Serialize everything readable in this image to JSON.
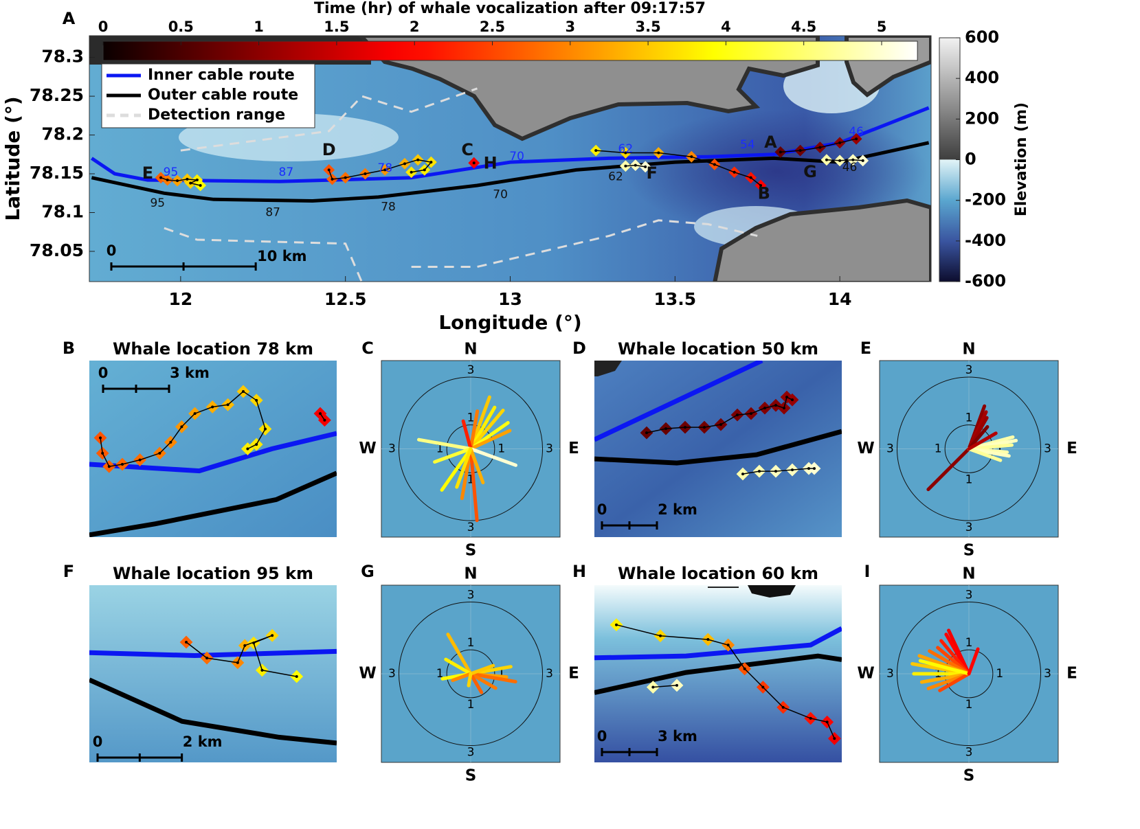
{
  "chart_data": [
    {
      "type": "map",
      "panel": "A",
      "xlabel": "Longitude (°)",
      "ylabel": "Latitude (°)",
      "xlim": [
        11.723,
        14.277
      ],
      "xticks": [
        12,
        12.5,
        13,
        13.5,
        14
      ],
      "ylim": [
        78.011,
        78.328
      ],
      "yticks": [
        78.05,
        78.1,
        78.15,
        78.2,
        78.25,
        78.3
      ],
      "colorbar": {
        "label": "Time (hr) of whale vocalization after 09:17:57",
        "colormap": "hot",
        "lim": [
          0,
          5.23
        ],
        "ticks": [
          0,
          0.5,
          1,
          1.5,
          2,
          2.5,
          3,
          3.5,
          4,
          4.5,
          5
        ]
      },
      "elevation_colorbar": {
        "label": "Elevation (m)",
        "lim": [
          -600,
          600
        ],
        "ticks": [
          -600,
          -400,
          -200,
          0,
          200,
          400,
          600
        ]
      },
      "legend": "upper left",
      "lines": [
        {
          "name": "Inner cable route",
          "color": "#0b17f2",
          "style": "solid",
          "x": [
            11.73,
            11.8,
            11.9,
            12.3,
            12.7,
            13.0,
            13.3,
            13.6,
            13.8,
            14.0,
            14.27
          ],
          "y": [
            78.17,
            78.15,
            78.142,
            78.14,
            78.145,
            78.165,
            78.17,
            78.172,
            78.175,
            78.19,
            78.235
          ]
        },
        {
          "name": "Outer cable route",
          "color": "#000000",
          "style": "solid",
          "x": [
            11.73,
            11.95,
            12.1,
            12.4,
            12.6,
            12.9,
            13.2,
            13.5,
            13.8,
            14.0,
            14.27
          ],
          "y": [
            78.145,
            78.125,
            78.117,
            78.115,
            78.12,
            78.135,
            78.155,
            78.165,
            78.17,
            78.165,
            78.19
          ]
        },
        {
          "name": "Detection range",
          "color": "#dddddd",
          "style": "dashed",
          "x": [
            12.0,
            12.45,
            12.55,
            12.7,
            12.9,
            null,
            11.95,
            12.05,
            12.5,
            12.55,
            null,
            12.7,
            12.9,
            13.3,
            13.45,
            13.6,
            13.75
          ],
          "y": [
            78.18,
            78.205,
            78.25,
            78.23,
            78.26,
            null,
            78.08,
            78.065,
            78.06,
            78.01,
            null,
            78.03,
            78.03,
            78.07,
            78.09,
            78.085,
            78.07
          ]
        }
      ],
      "tracks": [
        {
          "x": [
            11.94,
            11.96,
            11.99,
            12.02,
            12.05,
            12.03,
            12.06
          ],
          "y": [
            78.145,
            78.142,
            78.141,
            78.143,
            78.142,
            78.138,
            78.135
          ],
          "time": [
            2.7,
            2.9,
            3.2,
            3.5,
            3.8,
            3.6,
            3.9
          ]
        },
        {
          "x": [
            12.45,
            12.46,
            12.5,
            12.56,
            12.62,
            12.68,
            12.72,
            12.76,
            12.74,
            12.7
          ],
          "y": [
            78.155,
            78.143,
            78.145,
            78.15,
            78.155,
            78.163,
            78.168,
            78.165,
            78.155,
            78.152
          ],
          "time": [
            2.6,
            2.7,
            2.8,
            2.9,
            3.1,
            3.3,
            3.5,
            3.7,
            3.8,
            3.75
          ]
        },
        {
          "x": [
            12.89
          ],
          "y": [
            78.164
          ],
          "time": [
            1.8
          ]
        },
        {
          "x": [
            13.35,
            13.38,
            13.41
          ],
          "y": [
            78.16,
            78.161,
            78.159
          ],
          "time": [
            4.8,
            4.9,
            5.0
          ]
        },
        {
          "x": [
            13.26,
            13.35,
            13.45,
            13.55,
            13.62,
            13.68,
            13.73,
            13.76
          ],
          "y": [
            78.18,
            78.177,
            78.177,
            78.172,
            78.162,
            78.152,
            78.145,
            78.135
          ],
          "time": [
            3.8,
            3.6,
            3.3,
            3.0,
            2.6,
            2.3,
            2.1,
            1.9
          ]
        },
        {
          "x": [
            13.82,
            13.88,
            13.94,
            14.0,
            14.05
          ],
          "y": [
            78.178,
            78.18,
            78.184,
            78.19,
            78.195
          ],
          "time": [
            0.7,
            0.8,
            0.9,
            1.0,
            1.1
          ]
        },
        {
          "x": [
            13.96,
            14.0,
            14.04,
            14.07
          ],
          "y": [
            78.168,
            78.167,
            78.168,
            78.167
          ],
          "time": [
            4.8,
            4.85,
            4.9,
            5.0
          ]
        }
      ],
      "annotations": [
        {
          "text": "A",
          "x": 13.79,
          "y": 78.19,
          "color": "#111111"
        },
        {
          "text": "B",
          "x": 13.77,
          "y": 78.124,
          "color": "#111111"
        },
        {
          "text": "C",
          "x": 12.87,
          "y": 78.18,
          "color": "#111111"
        },
        {
          "text": "D",
          "x": 12.45,
          "y": 78.18,
          "color": "#111111"
        },
        {
          "text": "E",
          "x": 11.9,
          "y": 78.15,
          "color": "#111111"
        },
        {
          "text": "F",
          "x": 13.43,
          "y": 78.15,
          "color": "#111111"
        },
        {
          "text": "G",
          "x": 13.91,
          "y": 78.152,
          "color": "#111111"
        },
        {
          "text": "H",
          "x": 12.94,
          "y": 78.163,
          "color": "#111111"
        },
        {
          "text": "95",
          "x": 11.97,
          "y": 78.152,
          "color": "#1a2cff"
        },
        {
          "text": "87",
          "x": 12.32,
          "y": 78.152,
          "color": "#1a2cff"
        },
        {
          "text": "78",
          "x": 12.62,
          "y": 78.157,
          "color": "#1a2cff"
        },
        {
          "text": "70",
          "x": 13.02,
          "y": 78.172,
          "color": "#1a2cff"
        },
        {
          "text": "62",
          "x": 13.35,
          "y": 78.182,
          "color": "#1a2cff"
        },
        {
          "text": "54",
          "x": 13.72,
          "y": 78.187,
          "color": "#1a2cff"
        },
        {
          "text": "46",
          "x": 14.05,
          "y": 78.204,
          "color": "#1a2cff"
        },
        {
          "text": "95",
          "x": 11.93,
          "y": 78.112,
          "color": "#111111"
        },
        {
          "text": "87",
          "x": 12.28,
          "y": 78.1,
          "color": "#111111"
        },
        {
          "text": "78",
          "x": 12.63,
          "y": 78.107,
          "color": "#111111"
        },
        {
          "text": "70",
          "x": 12.97,
          "y": 78.123,
          "color": "#111111"
        },
        {
          "text": "62",
          "x": 13.32,
          "y": 78.146,
          "color": "#111111"
        },
        {
          "text": "46",
          "x": 14.03,
          "y": 78.158,
          "color": "#111111"
        }
      ],
      "scale_bar": {
        "labels": [
          "0",
          "10 km"
        ],
        "length": 10
      }
    },
    {
      "type": "map",
      "panel": "B",
      "title": "Whale location 78 km",
      "xlim": [
        0,
        11.25
      ],
      "ylim": [
        0,
        8.0
      ],
      "lines": [
        {
          "color": "#0b17f2",
          "style": "solid",
          "x": [
            0,
            5,
            8.3,
            11.25
          ],
          "y": [
            3.3,
            3.0,
            4.0,
            4.7
          ]
        },
        {
          "color": "#000000",
          "style": "solid",
          "x": [
            0,
            3,
            8.5,
            11.25
          ],
          "y": [
            0.1,
            0.6,
            1.7,
            2.9
          ]
        }
      ],
      "tracks": [
        {
          "x": [
            0.5,
            0.6,
            0.9,
            1.5,
            2.3,
            3.2,
            3.7,
            4.2,
            4.8,
            5.6,
            6.3,
            7.0,
            7.6,
            8.0,
            7.6,
            7.2
          ],
          "y": [
            4.5,
            3.8,
            3.2,
            3.3,
            3.5,
            3.8,
            4.3,
            5.0,
            5.6,
            5.9,
            6.0,
            6.6,
            6.2,
            4.9,
            4.2,
            4.0
          ],
          "time": [
            2.6,
            2.65,
            2.7,
            2.75,
            2.8,
            2.9,
            3.0,
            3.1,
            3.2,
            3.3,
            3.4,
            3.5,
            3.6,
            3.7,
            3.75,
            3.8
          ]
        },
        {
          "x": [
            10.5,
            10.7
          ],
          "y": [
            5.6,
            5.3
          ],
          "time": [
            1.8,
            1.8
          ]
        }
      ],
      "scale_bar": {
        "labels": [
          "0",
          "3 km"
        ],
        "length": 3
      }
    },
    {
      "type": "polar",
      "panel": "C",
      "directions": [
        "N",
        "E",
        "S",
        "W"
      ],
      "rticks": [
        1,
        3
      ],
      "rlim": [
        0,
        3.3
      ],
      "rays": {
        "angle": [
          20,
          30,
          40,
          55,
          65,
          10,
          345,
          280,
          250,
          215,
          190,
          175,
          110,
          160,
          200
        ],
        "length": [
          2.3,
          2.0,
          2.1,
          1.9,
          1.8,
          1.6,
          1.2,
          2.2,
          1.6,
          2.1,
          2.1,
          3.0,
          2.0,
          1.5,
          1.7
        ],
        "time": [
          3.5,
          3.8,
          3.6,
          4.0,
          3.2,
          2.9,
          2.2,
          4.6,
          4.2,
          3.9,
          3.0,
          2.6,
          5.0,
          3.3,
          3.7
        ]
      }
    },
    {
      "type": "map",
      "panel": "D",
      "title": "Whale location 50 km",
      "xlim": [
        0,
        9
      ],
      "ylim": [
        0,
        6.43
      ],
      "lines": [
        {
          "color": "#0b17f2",
          "style": "solid",
          "x": [
            0,
            6.1
          ],
          "y": [
            3.55,
            6.43
          ]
        },
        {
          "color": "#000000",
          "style": "solid",
          "x": [
            0,
            3,
            5.9,
            9
          ],
          "y": [
            2.85,
            2.7,
            3.0,
            3.85
          ]
        }
      ],
      "tracks": [
        {
          "x": [
            1.9,
            2.6,
            3.3,
            4.0,
            4.6,
            5.2,
            5.7,
            6.2,
            6.6,
            6.9,
            7.0,
            7.2
          ],
          "y": [
            3.8,
            3.95,
            4.0,
            4.0,
            4.1,
            4.45,
            4.5,
            4.7,
            4.8,
            4.7,
            5.1,
            5.0
          ],
          "time": [
            0.7,
            0.72,
            0.75,
            0.8,
            0.82,
            0.85,
            0.9,
            0.92,
            0.95,
            1.0,
            1.05,
            1.1
          ]
        },
        {
          "x": [
            5.4,
            6.0,
            6.6,
            7.2,
            7.8,
            8.0
          ],
          "y": [
            2.3,
            2.4,
            2.4,
            2.45,
            2.5,
            2.5
          ],
          "time": [
            4.8,
            4.85,
            4.9,
            4.9,
            4.95,
            5.0
          ]
        }
      ],
      "scale_bar": {
        "labels": [
          "0",
          "2 km"
        ],
        "length": 2
      }
    },
    {
      "type": "polar",
      "panel": "E",
      "directions": [
        "N",
        "E",
        "S",
        "W"
      ],
      "rticks": [
        1,
        3
      ],
      "rlim": [
        0,
        3.3
      ],
      "rays": {
        "angle": [
          20,
          25,
          30,
          40,
          225,
          75,
          80,
          85,
          95,
          100,
          110,
          60
        ],
        "length": [
          1.9,
          1.7,
          1.5,
          1.2,
          2.4,
          1.9,
          2.0,
          1.8,
          1.6,
          1.7,
          1.4,
          1.3
        ],
        "time": [
          1.0,
          1.2,
          1.1,
          0.9,
          1.0,
          4.8,
          4.9,
          4.7,
          4.8,
          4.9,
          4.7,
          1.3
        ]
      }
    },
    {
      "type": "map",
      "panel": "F",
      "title": "Whale location 95 km",
      "xlim": [
        0,
        5.87
      ],
      "ylim": [
        0,
        4.23
      ],
      "lines": [
        {
          "color": "#0b17f2",
          "style": "solid",
          "x": [
            0,
            2.5,
            5.87
          ],
          "y": [
            2.62,
            2.55,
            2.65
          ]
        },
        {
          "color": "#000000",
          "style": "solid",
          "x": [
            0,
            2.2,
            4.5,
            5.87
          ],
          "y": [
            1.97,
            0.98,
            0.6,
            0.46
          ]
        }
      ],
      "tracks": [
        {
          "x": [
            2.3,
            2.79,
            3.52,
            3.69,
            4.34,
            3.9,
            4.1,
            4.92
          ],
          "y": [
            2.87,
            2.49,
            2.38,
            2.79,
            3.03,
            2.85,
            2.2,
            2.05
          ],
          "time": [
            2.7,
            2.8,
            3.0,
            3.3,
            3.6,
            3.7,
            3.8,
            3.9
          ]
        }
      ],
      "scale_bar": {
        "labels": [
          "0",
          "2 km"
        ],
        "length": 2
      }
    },
    {
      "type": "polar",
      "panel": "G",
      "directions": [
        "N",
        "E",
        "S",
        "W"
      ],
      "rticks": [
        1,
        3
      ],
      "rlim": [
        0,
        3.3
      ],
      "rays": {
        "angle": [
          330,
          300,
          260,
          80,
          95,
          100,
          120,
          150,
          70,
          250,
          190
        ],
        "length": [
          1.9,
          1.2,
          1.2,
          1.7,
          1.5,
          1.9,
          1.2,
          0.9,
          1.0,
          0.8,
          0.5
        ],
        "time": [
          3.4,
          3.8,
          3.9,
          3.6,
          3.2,
          2.8,
          2.9,
          2.7,
          3.5,
          3.0,
          3.6
        ]
      }
    },
    {
      "type": "map",
      "panel": "H",
      "title": "Whale location 60 km",
      "xlim": [
        0,
        13.5
      ],
      "ylim": [
        0,
        9.66
      ],
      "lines": [
        {
          "color": "#0b17f2",
          "style": "solid",
          "x": [
            0,
            5,
            11.8,
            13.5
          ],
          "y": [
            5.7,
            5.8,
            6.4,
            7.3
          ]
        },
        {
          "color": "#000000",
          "style": "solid",
          "x": [
            0,
            5,
            12.2,
            13.5
          ],
          "y": [
            3.8,
            4.9,
            5.8,
            5.6
          ]
        }
      ],
      "tracks": [
        {
          "x": [
            1.2,
            3.6,
            6.2,
            7.3,
            8.2,
            9.2,
            10.3,
            11.8,
            12.7,
            13.1
          ],
          "y": [
            7.5,
            6.9,
            6.7,
            6.4,
            5.1,
            4.1,
            3.0,
            2.4,
            2.2,
            1.3
          ],
          "time": [
            3.8,
            3.6,
            3.4,
            3.0,
            2.6,
            2.4,
            2.3,
            2.1,
            2.0,
            1.8
          ]
        },
        {
          "x": [
            3.2,
            4.5
          ],
          "y": [
            4.1,
            4.2
          ],
          "time": [
            4.8,
            4.9
          ]
        }
      ],
      "scale_bar": {
        "labels": [
          "0",
          "3 km"
        ],
        "length": 3
      }
    },
    {
      "type": "polar",
      "panel": "I",
      "directions": [
        "N",
        "E",
        "S",
        "W"
      ],
      "rticks": [
        1,
        3
      ],
      "rlim": [
        0,
        3.3
      ],
      "rays": {
        "angle": [
          335,
          330,
          320,
          310,
          300,
          290,
          280,
          270,
          260,
          250,
          240,
          285,
          20
        ],
        "length": [
          2.0,
          1.9,
          1.8,
          1.7,
          1.9,
          2.2,
          2.4,
          2.3,
          2.0,
          1.8,
          1.4,
          2.1,
          1.1
        ],
        "time": [
          1.8,
          1.9,
          2.2,
          2.5,
          2.8,
          3.2,
          3.5,
          3.8,
          3.3,
          3.0,
          2.5,
          3.9,
          2.0
        ]
      }
    }
  ]
}
